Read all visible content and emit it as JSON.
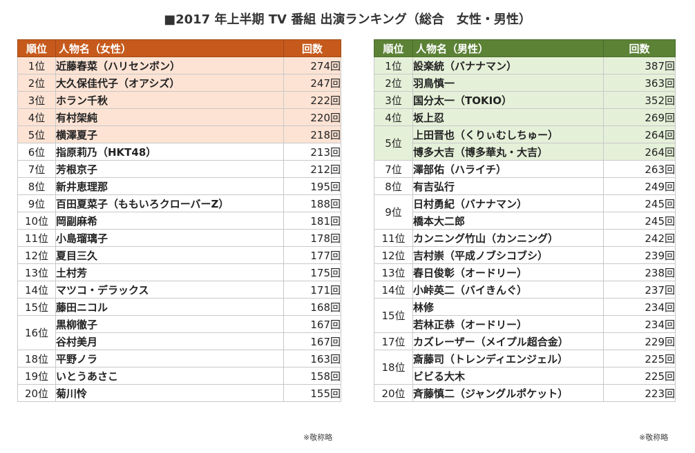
{
  "title": "■2017 年上半期 TV 番組 出演ランキング（総合　女性・男性）",
  "female": {
    "headers": {
      "rank": "順位",
      "name": "人物名（女性）",
      "count": "回数"
    },
    "rows": [
      {
        "rank": "1位",
        "name": "近藤春菜（ハリセンボン）",
        "count": "274回",
        "highlight": true
      },
      {
        "rank": "2位",
        "name": "大久保佳代子（オアシズ）",
        "count": "247回",
        "highlight": true
      },
      {
        "rank": "3位",
        "name": "ホラン千秋",
        "count": "222回",
        "highlight": true
      },
      {
        "rank": "4位",
        "name": "有村架純",
        "count": "220回",
        "highlight": true
      },
      {
        "rank": "5位",
        "name": "横澤夏子",
        "count": "218回",
        "highlight": true
      },
      {
        "rank": "6位",
        "name": "指原莉乃（HKT48）",
        "count": "213回",
        "highlight": false
      },
      {
        "rank": "7位",
        "name": "芳根京子",
        "count": "212回",
        "highlight": false
      },
      {
        "rank": "8位",
        "name": "新井恵理那",
        "count": "195回",
        "highlight": false
      },
      {
        "rank": "9位",
        "name": "百田夏菜子（ももいろクローバーZ）",
        "count": "188回",
        "highlight": false
      },
      {
        "rank": "10位",
        "name": "岡副麻希",
        "count": "181回",
        "highlight": false
      },
      {
        "rank": "11位",
        "name": "小島瑠璃子",
        "count": "178回",
        "highlight": false
      },
      {
        "rank": "12位",
        "name": "夏目三久",
        "count": "177回",
        "highlight": false
      },
      {
        "rank": "13位",
        "name": "土村芳",
        "count": "175回",
        "highlight": false
      },
      {
        "rank": "14位",
        "name": "マツコ・デラックス",
        "count": "171回",
        "highlight": false
      },
      {
        "rank": "15位",
        "name": "藤田ニコル",
        "count": "168回",
        "highlight": false
      },
      {
        "rank": "16位",
        "name": "黒柳徹子",
        "count": "167回",
        "highlight": false,
        "span": 2
      },
      {
        "rank": null,
        "name": "谷村美月",
        "count": "167回",
        "highlight": false
      },
      {
        "rank": "18位",
        "name": "平野ノラ",
        "count": "163回",
        "highlight": false
      },
      {
        "rank": "19位",
        "name": "いとうあさこ",
        "count": "158回",
        "highlight": false
      },
      {
        "rank": "20位",
        "name": "菊川怜",
        "count": "155回",
        "highlight": false
      }
    ],
    "note": "※敬称略"
  },
  "male": {
    "headers": {
      "rank": "順位",
      "name": "人物名（男性）",
      "count": "回数"
    },
    "rows": [
      {
        "rank": "1位",
        "name": "設楽統（バナナマン）",
        "count": "387回",
        "highlight": true
      },
      {
        "rank": "2位",
        "name": "羽鳥慎一",
        "count": "363回",
        "highlight": true
      },
      {
        "rank": "3位",
        "name": "国分太一（TOKIO）",
        "count": "352回",
        "highlight": true
      },
      {
        "rank": "4位",
        "name": "坂上忍",
        "count": "269回",
        "highlight": true
      },
      {
        "rank": "5位",
        "name": "上田晋也（くりぃむしちゅー）",
        "count": "264回",
        "highlight": true,
        "span": 2
      },
      {
        "rank": null,
        "name": "博多大吉（博多華丸・大吉）",
        "count": "264回",
        "highlight": true
      },
      {
        "rank": "7位",
        "name": "澤部佑（ハライチ）",
        "count": "263回",
        "highlight": false
      },
      {
        "rank": "8位",
        "name": "有吉弘行",
        "count": "249回",
        "highlight": false
      },
      {
        "rank": "9位",
        "name": "日村勇紀（バナナマン）",
        "count": "245回",
        "highlight": false,
        "span": 2
      },
      {
        "rank": null,
        "name": "橋本大二郎",
        "count": "245回",
        "highlight": false
      },
      {
        "rank": "11位",
        "name": "カンニング竹山（カンニング）",
        "count": "242回",
        "highlight": false
      },
      {
        "rank": "12位",
        "name": "吉村崇（平成ノブシコブシ）",
        "count": "239回",
        "highlight": false
      },
      {
        "rank": "13位",
        "name": "春日俊彰（オードリー）",
        "count": "238回",
        "highlight": false
      },
      {
        "rank": "14位",
        "name": "小峠英二（バイきんぐ）",
        "count": "237回",
        "highlight": false
      },
      {
        "rank": "15位",
        "name": "林修",
        "count": "234回",
        "highlight": false,
        "span": 2
      },
      {
        "rank": null,
        "name": "若林正恭（オードリー）",
        "count": "234回",
        "highlight": false
      },
      {
        "rank": "17位",
        "name": "カズレーザー（メイプル超合金）",
        "count": "229回",
        "highlight": false
      },
      {
        "rank": "18位",
        "name": "斎藤司（トレンディエンジェル）",
        "count": "225回",
        "highlight": false,
        "span": 2
      },
      {
        "rank": null,
        "name": "ビビる大木",
        "count": "225回",
        "highlight": false
      },
      {
        "rank": "20位",
        "name": "斉藤慎二（ジャングルポケット）",
        "count": "223回",
        "highlight": false
      }
    ],
    "note": "※敬称略"
  }
}
